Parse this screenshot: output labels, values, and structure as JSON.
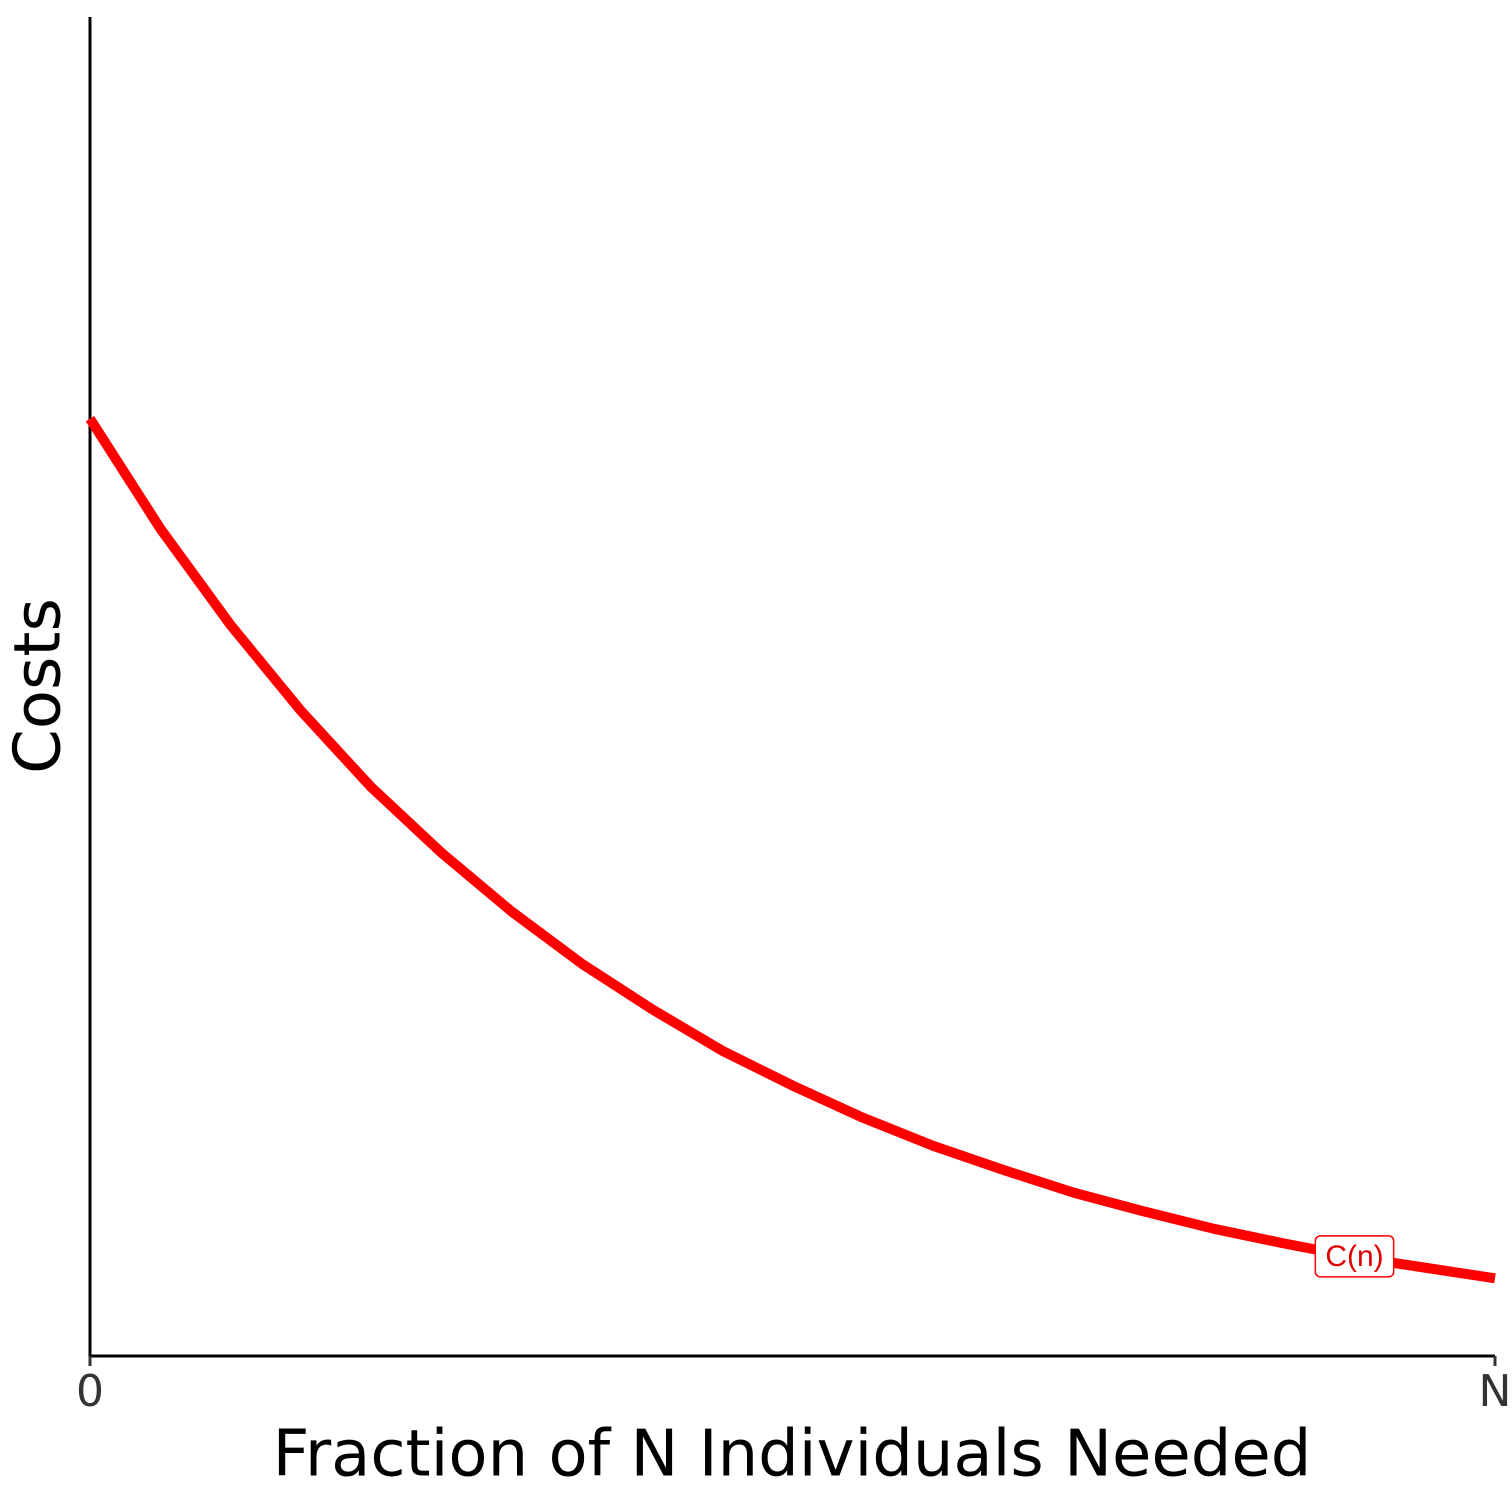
{
  "chart_data": {
    "type": "line",
    "x_label": "Fraction of N Individuals Needed",
    "y_label": "Costs",
    "x": [
      0,
      0.05,
      0.1,
      0.15,
      0.2,
      0.25,
      0.3,
      0.35,
      0.4,
      0.45,
      0.5,
      0.55,
      0.6,
      0.65,
      0.7,
      0.75,
      0.8,
      0.85,
      0.9,
      0.95,
      1
    ],
    "series": [
      {
        "name": "C(n)",
        "color": "#ff0000",
        "values": [
          0.7,
          0.618,
          0.546,
          0.482,
          0.425,
          0.376,
          0.332,
          0.293,
          0.259,
          0.228,
          0.202,
          0.178,
          0.157,
          0.139,
          0.122,
          0.108,
          0.095,
          0.084,
          0.074,
          0.066,
          0.058
        ]
      }
    ],
    "xlim": [
      0,
      1
    ],
    "ylim": [
      0,
      1
    ],
    "xticks": [
      0,
      {
        "value": 1,
        "label": "N"
      }
    ],
    "grid": false
  }
}
